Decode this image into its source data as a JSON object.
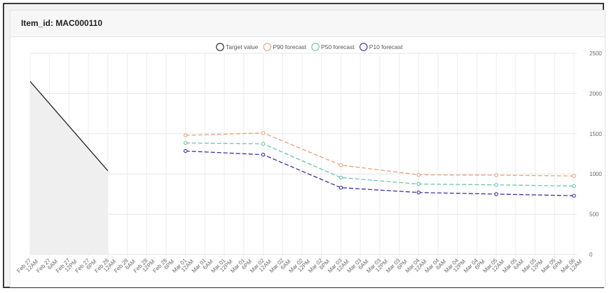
{
  "panel": {
    "title": "Item_id: MAC000110"
  },
  "chart_data": {
    "type": "line",
    "x": [
      "2026-02-27 00:00",
      "2026-02-27 06:00",
      "2026-02-27 12:00",
      "2026-02-27 18:00",
      "2026-02-28 00:00",
      "2026-02-28 06:00",
      "2026-02-28 12:00",
      "2026-02-28 18:00",
      "2026-03-01 00:00",
      "2026-03-01 06:00",
      "2026-03-01 12:00",
      "2026-03-01 18:00",
      "2026-03-02 00:00",
      "2026-03-02 06:00",
      "2026-03-02 12:00",
      "2026-03-02 18:00",
      "2026-03-03 00:00",
      "2026-03-03 06:00",
      "2026-03-03 12:00",
      "2026-03-03 18:00",
      "2026-03-04 00:00",
      "2026-03-04 06:00",
      "2026-03-04 12:00",
      "2026-03-04 18:00",
      "2026-03-05 00:00",
      "2026-03-05 06:00",
      "2026-03-05 12:00",
      "2026-03-05 18:00",
      "2026-03-06 00:00"
    ],
    "tick_labels": [
      [
        "Feb 27",
        "12AM"
      ],
      [
        "Feb 27",
        "6AM"
      ],
      [
        "Feb 27",
        "12PM"
      ],
      [
        "Feb 27",
        "6PM"
      ],
      [
        "Feb 28",
        "12AM"
      ],
      [
        "Feb 28",
        "6AM"
      ],
      [
        "Feb 28",
        "12PM"
      ],
      [
        "Feb 28",
        "6PM"
      ],
      [
        "Mar 01",
        "12AM"
      ],
      [
        "Mar 01",
        "6AM"
      ],
      [
        "Mar 01",
        "12PM"
      ],
      [
        "Mar 01",
        "6PM"
      ],
      [
        "Mar 02",
        "12AM"
      ],
      [
        "Mar 02",
        "6AM"
      ],
      [
        "Mar 02",
        "12PM"
      ],
      [
        "Mar 02",
        "6PM"
      ],
      [
        "Mar 03",
        "12AM"
      ],
      [
        "Mar 03",
        "6AM"
      ],
      [
        "Mar 03",
        "12PM"
      ],
      [
        "Mar 03",
        "6PM"
      ],
      [
        "Mar 04",
        "12AM"
      ],
      [
        "Mar 04",
        "6AM"
      ],
      [
        "Mar 04",
        "12PM"
      ],
      [
        "Mar 04",
        "6PM"
      ],
      [
        "Mar 05",
        "12AM"
      ],
      [
        "Mar 05",
        "6AM"
      ],
      [
        "Mar 05",
        "12PM"
      ],
      [
        "Mar 05",
        "6PM"
      ],
      [
        "Mar 06",
        "12AM"
      ]
    ],
    "y_ticks": [
      "0",
      "500",
      "1000",
      "1500",
      "2000",
      "2500"
    ],
    "ylim": [
      0,
      2500
    ],
    "y_axis_side": "right",
    "grid": true,
    "legend_position": "top-center",
    "series": [
      {
        "name": "Target value",
        "color": "#222222",
        "dashed": false,
        "markers": false,
        "fill": "#efefef",
        "points": [
          [
            "2026-02-27 00:00",
            2150
          ],
          [
            "2026-02-28 00:00",
            1040
          ]
        ]
      },
      {
        "name": "P90 forecast",
        "color": "#e8a27c",
        "dashed": true,
        "markers": true,
        "points": [
          [
            "2026-03-01 00:00",
            1480
          ],
          [
            "2026-03-02 00:00",
            1510
          ],
          [
            "2026-03-03 00:00",
            1110
          ],
          [
            "2026-03-04 00:00",
            990
          ],
          [
            "2026-03-05 00:00",
            985
          ],
          [
            "2026-03-06 00:00",
            975
          ]
        ]
      },
      {
        "name": "P50 forecast",
        "color": "#6cc4a6",
        "dashed": true,
        "markers": true,
        "points": [
          [
            "2026-03-01 00:00",
            1385
          ],
          [
            "2026-03-02 00:00",
            1375
          ],
          [
            "2026-03-03 00:00",
            955
          ],
          [
            "2026-03-04 00:00",
            875
          ],
          [
            "2026-03-05 00:00",
            865
          ],
          [
            "2026-03-06 00:00",
            850
          ]
        ]
      },
      {
        "name": "P10 forecast",
        "color": "#3b2f9e",
        "dashed": true,
        "markers": true,
        "points": [
          [
            "2026-03-01 00:00",
            1285
          ],
          [
            "2026-03-02 00:00",
            1240
          ],
          [
            "2026-03-03 00:00",
            830
          ],
          [
            "2026-03-04 00:00",
            770
          ],
          [
            "2026-03-05 00:00",
            750
          ],
          [
            "2026-03-06 00:00",
            730
          ]
        ]
      }
    ]
  }
}
